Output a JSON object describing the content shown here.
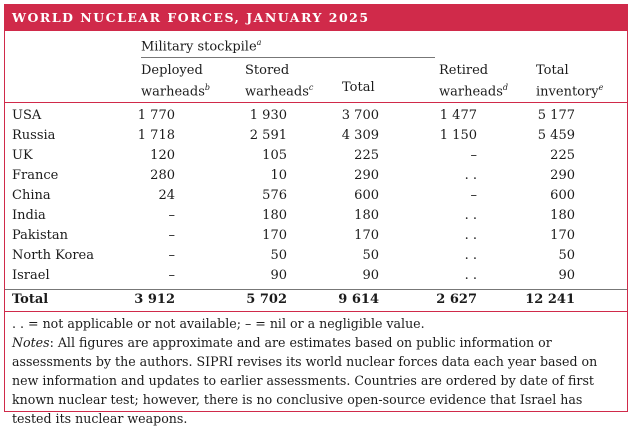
{
  "title": "WORLD NUCLEAR FORCES, JANUARY 2025",
  "group_header": {
    "label": "Military stockpile",
    "note": "a"
  },
  "columns": [
    {
      "line1": "Deployed",
      "line2": "warheads",
      "note": "b"
    },
    {
      "line1": "Stored",
      "line2": "warheads",
      "note": "c"
    },
    {
      "line1": "",
      "line2": "Total",
      "note": ""
    },
    {
      "line1": "Retired",
      "line2": "warheads",
      "note": "d"
    },
    {
      "line1": "Total",
      "line2": "inventory",
      "note": "e"
    }
  ],
  "rows": [
    {
      "country": "USA",
      "deployed": "1 770",
      "stored": "1 930",
      "total": "3 700",
      "retired": "1 477",
      "inventory": "5 177"
    },
    {
      "country": "Russia",
      "deployed": "1 718",
      "stored": "2 591",
      "total": "4 309",
      "retired": "1 150",
      "inventory": "5 459"
    },
    {
      "country": "UK",
      "deployed": "120",
      "stored": "105",
      "total": "225",
      "retired": "–",
      "inventory": "225"
    },
    {
      "country": "France",
      "deployed": "280",
      "stored": "10",
      "total": "290",
      "retired": ". .",
      "inventory": "290"
    },
    {
      "country": "China",
      "deployed": "24",
      "stored": "576",
      "total": "600",
      "retired": "–",
      "inventory": "600"
    },
    {
      "country": "India",
      "deployed": "–",
      "stored": "180",
      "total": "180",
      "retired": ". .",
      "inventory": "180"
    },
    {
      "country": "Pakistan",
      "deployed": "–",
      "stored": "170",
      "total": "170",
      "retired": ". .",
      "inventory": "170"
    },
    {
      "country": "North Korea",
      "deployed": "–",
      "stored": "50",
      "total": "50",
      "retired": ". .",
      "inventory": "50"
    },
    {
      "country": "Israel",
      "deployed": "–",
      "stored": "90",
      "total": "90",
      "retired": ". .",
      "inventory": "90"
    }
  ],
  "total_row": {
    "country": "Total",
    "deployed": "3 912",
    "stored": "5 702",
    "total": "9 614",
    "retired": "2 627",
    "inventory": "12 241"
  },
  "legend_note": ". . = not applicable or not available; – = nil or a negligible value.",
  "notes_label": "Notes",
  "notes_text": ": All figures are approximate and are estimates based on public information or assessments by the authors. SIPRI revises its world nuclear forces data each year based on new information and updates to earlier assessments. Countries are ordered by date of first known nuclear test; however, there is no conclusive open-source evidence that Israel has tested its nuclear weapons.",
  "colors": {
    "accent": "#d02a4a"
  }
}
